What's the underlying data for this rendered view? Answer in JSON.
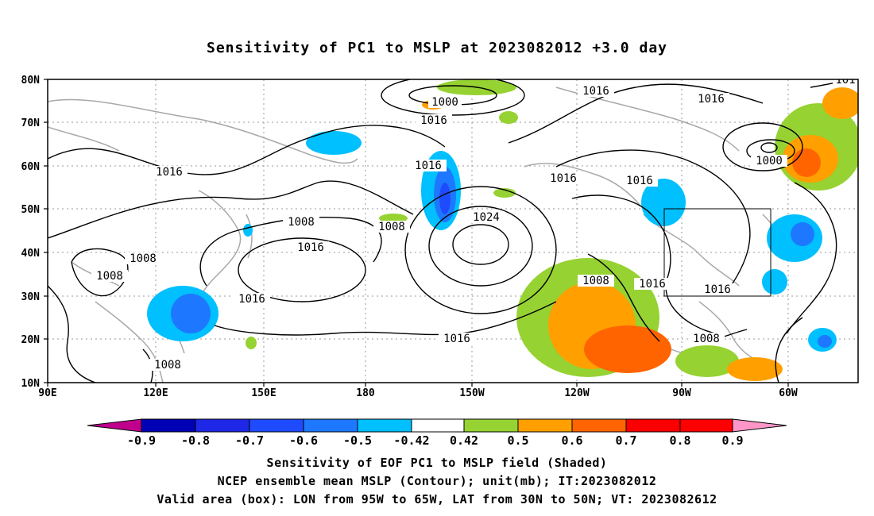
{
  "title": "Sensitivity of PC1 to MSLP at 2023082012 +3.0 day",
  "lat_labels": [
    "80N",
    "70N",
    "60N",
    "50N",
    "40N",
    "30N",
    "20N",
    "10N"
  ],
  "lon_labels": [
    "90E",
    "120E",
    "150E",
    "180",
    "150W",
    "120W",
    "90W",
    "60W"
  ],
  "contour_labels": [
    "1000",
    "1016",
    "1016",
    "1016",
    "1016",
    "1008",
    "1016",
    "1024",
    "1016",
    "1016",
    "1008",
    "1008",
    "1008",
    "1016",
    "1016",
    "1008",
    "1016",
    "1016",
    "1016",
    "1008",
    "1000",
    "1016",
    "1008",
    "101"
  ],
  "colorbar": {
    "ticks": [
      "-0.9",
      "-0.8",
      "-0.7",
      "-0.6",
      "-0.5",
      "-0.42",
      "0.42",
      "0.5",
      "0.6",
      "0.7",
      "0.8",
      "0.9"
    ],
    "colors": [
      "#c0008c",
      "#0000b4",
      "#1e28e6",
      "#1f4bff",
      "#1e78ff",
      "#00c0ff",
      "#ffffff",
      "#96d232",
      "#ffa000",
      "#ff6400",
      "#fa0000",
      "#ff96c8"
    ]
  },
  "footer": {
    "line1": "Sensitivity of EOF PC1 to MSLP field (Shaded)",
    "line2": "NCEP ensemble mean MSLP (Contour); unit(mb); IT:2023082012",
    "line3": "Valid area (box): LON from 95W to 65W, LAT from 30N to 50N; VT: 2023082612"
  }
}
